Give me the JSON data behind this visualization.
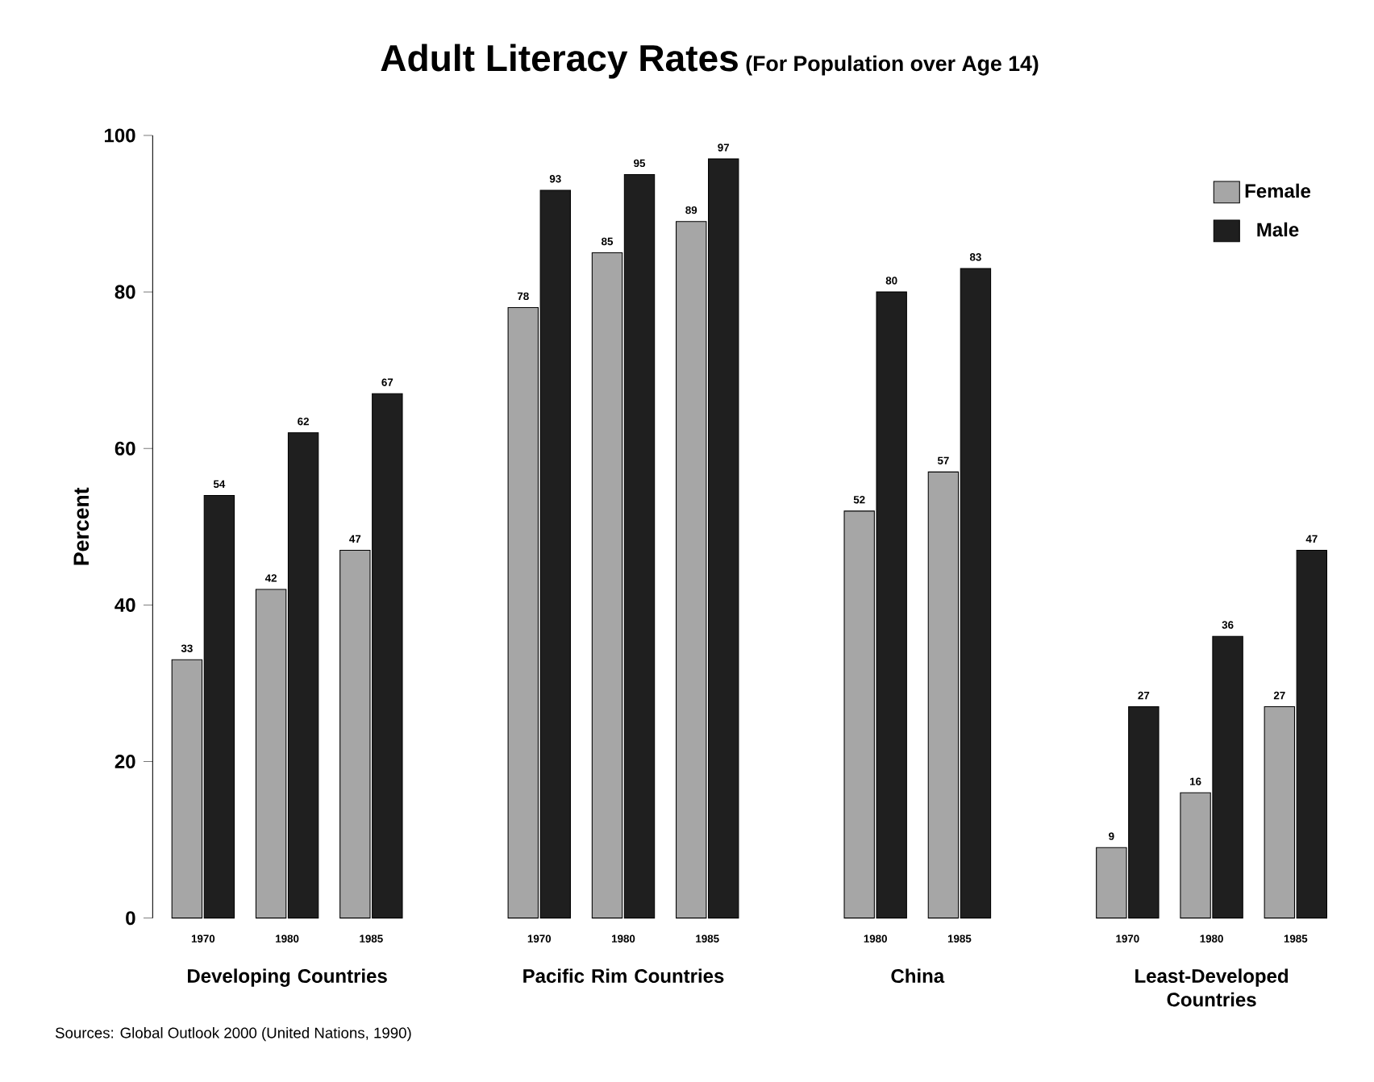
{
  "chart_data": {
    "type": "bar",
    "title": "Adult Literacy Rates",
    "subtitle": "(For Population over Age 14)",
    "ylabel": "Percent",
    "categories": [
      "1970",
      "1980",
      "1985",
      null,
      "1970",
      "1980",
      "1985",
      null,
      "1980",
      "1985",
      null,
      "1970",
      "1980",
      "1985"
    ],
    "series": [
      {
        "name": "Female",
        "color": "#a6a6a6",
        "values": [
          33,
          42,
          47,
          null,
          78,
          85,
          89,
          null,
          52,
          57,
          null,
          9,
          16,
          27
        ]
      },
      {
        "name": "Male",
        "color": "#1f1f1f",
        "values": [
          54,
          62,
          67,
          null,
          93,
          95,
          97,
          null,
          80,
          83,
          null,
          27,
          36,
          47
        ]
      }
    ],
    "annotations": [
      "Developing Countries",
      "Pacific Rim Countries",
      "China",
      "Least-Developed Countries",
      "Sources: Global Outlook 2000 (United Nations, 1990)"
    ],
    "ylim": [
      0,
      100
    ],
    "yticks": [
      0,
      20,
      40,
      60,
      80,
      100
    ],
    "data_labels": true,
    "legend": "top right",
    "grid": false
  }
}
